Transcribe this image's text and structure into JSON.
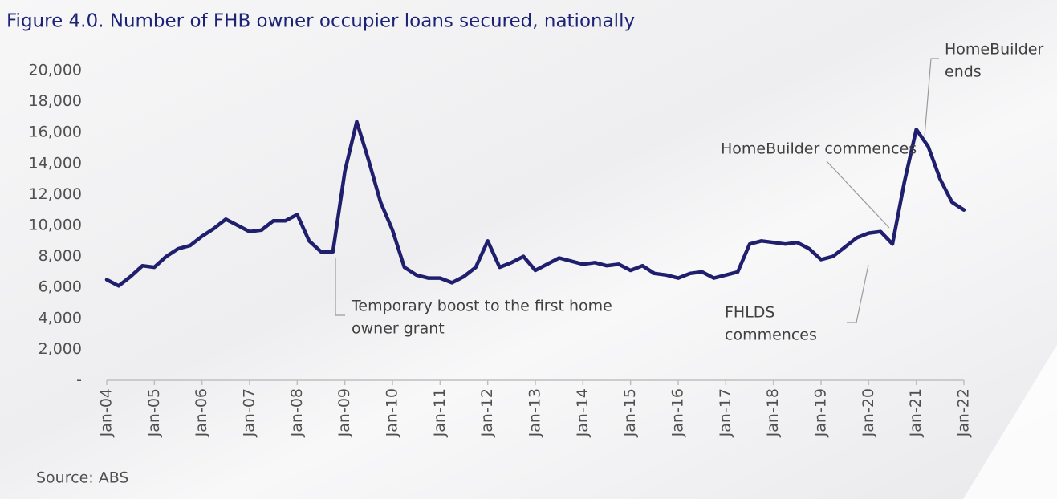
{
  "chart_data": {
    "type": "line",
    "title": "Figure 4.0. Number of FHB owner occupier loans secured, nationally",
    "source": "Source: ABS",
    "categories": [
      "Jan-04",
      null,
      null,
      null,
      "Jan-05",
      null,
      null,
      null,
      "Jan-06",
      null,
      null,
      null,
      "Jan-07",
      null,
      null,
      null,
      "Jan-08",
      null,
      null,
      null,
      "Jan-09",
      null,
      null,
      null,
      "Jan-10",
      null,
      null,
      null,
      "Jan-11",
      null,
      null,
      null,
      "Jan-12",
      null,
      null,
      null,
      "Jan-13",
      null,
      null,
      null,
      "Jan-14",
      null,
      null,
      null,
      "Jan-15",
      null,
      null,
      null,
      "Jan-16",
      null,
      null,
      null,
      "Jan-17",
      null,
      null,
      null,
      "Jan-18",
      null,
      null,
      null,
      "Jan-19",
      null,
      null,
      null,
      "Jan-20",
      null,
      null,
      null,
      "Jan-21",
      null,
      null,
      null,
      "Jan-22"
    ],
    "series": [
      {
        "color": "#1f1f6e",
        "values": [
          6500,
          6100,
          6700,
          7400,
          7300,
          8000,
          8500,
          8700,
          9300,
          9800,
          10400,
          10000,
          9600,
          9700,
          10300,
          10300,
          10700,
          9000,
          8300,
          8300,
          13500,
          16700,
          14200,
          11500,
          9700,
          7300,
          6800,
          6600,
          6600,
          6300,
          6700,
          7300,
          9000,
          7300,
          7600,
          8000,
          7100,
          7500,
          7900,
          7700,
          7500,
          7600,
          7400,
          7500,
          7100,
          7400,
          6900,
          6800,
          6600,
          6900,
          7000,
          6600,
          6800,
          7000,
          8800,
          9000,
          8900,
          8800,
          8900,
          8500,
          7800,
          8000,
          8600,
          9200,
          9500,
          9600,
          8800,
          12800,
          16200,
          15100,
          13000,
          11500,
          11000
        ]
      }
    ],
    "ylim": [
      0,
      20000
    ],
    "yticks": [
      {
        "value": 0,
        "label": "-"
      },
      {
        "value": 2000,
        "label": "2,000"
      },
      {
        "value": 4000,
        "label": "4,000"
      },
      {
        "value": 6000,
        "label": "6,000"
      },
      {
        "value": 8000,
        "label": "8,000"
      },
      {
        "value": 10000,
        "label": "10,000"
      },
      {
        "value": 12000,
        "label": "12,000"
      },
      {
        "value": 14000,
        "label": "14,000"
      },
      {
        "value": 16000,
        "label": "16,000"
      },
      {
        "value": 18000,
        "label": "18,000"
      },
      {
        "value": 20000,
        "label": "20,000"
      }
    ],
    "grid": false,
    "annotations": [
      {
        "lines": [
          "Temporary boost to the first home",
          "owner grant"
        ]
      },
      {
        "lines": [
          "FHLDS",
          "commences"
        ]
      },
      {
        "lines": [
          "HomeBuilder commences"
        ]
      },
      {
        "lines": [
          "HomeBuilder",
          "ends"
        ]
      }
    ]
  }
}
